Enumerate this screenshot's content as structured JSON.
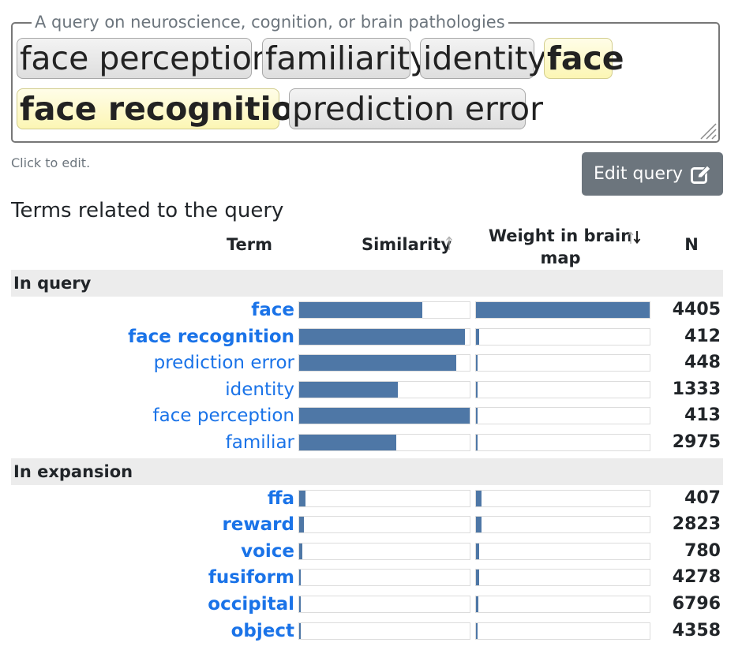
{
  "query": {
    "legend": "A query on neuroscience, cognition, or brain pathologies",
    "chips": [
      {
        "label": "face perception",
        "highlighted": false
      },
      {
        "label": "familiarity",
        "highlighted": false
      },
      {
        "label": "identity",
        "highlighted": false
      },
      {
        "label": "face",
        "highlighted": true
      },
      {
        "label": "face recognition",
        "highlighted": true
      },
      {
        "label": "prediction error",
        "highlighted": false
      }
    ],
    "hint": "Click to edit.",
    "edit_button": "Edit query",
    "edit_icon": "edit-square-pen-icon"
  },
  "table": {
    "title": "Terms related to the query",
    "headers": {
      "term": "Term",
      "similarity": "Similarity",
      "weight": "Weight in brain map",
      "n": "N"
    },
    "sort_icons": {
      "similarity": "sort-up-icon",
      "weight": "sort-updown-active-icon"
    },
    "groups": [
      {
        "label": "In query",
        "rows": [
          {
            "term": "face",
            "bold": true,
            "similarity": 0.72,
            "weight": 1.0,
            "n": "4405"
          },
          {
            "term": "face recognition",
            "bold": true,
            "similarity": 0.97,
            "weight": 0.02,
            "n": "412"
          },
          {
            "term": "prediction error",
            "bold": false,
            "similarity": 0.92,
            "weight": 0.01,
            "n": "448"
          },
          {
            "term": "identity",
            "bold": false,
            "similarity": 0.58,
            "weight": 0.005,
            "n": "1333"
          },
          {
            "term": "face perception",
            "bold": false,
            "similarity": 1.0,
            "weight": 0.005,
            "n": "413"
          },
          {
            "term": "familiar",
            "bold": false,
            "similarity": 0.57,
            "weight": 0.005,
            "n": "2975"
          }
        ]
      },
      {
        "label": "In expansion",
        "rows": [
          {
            "term": "ffa",
            "bold": true,
            "similarity": 0.035,
            "weight": 0.03,
            "n": "407"
          },
          {
            "term": "reward",
            "bold": true,
            "similarity": 0.03,
            "weight": 0.03,
            "n": "2823"
          },
          {
            "term": "voice",
            "bold": true,
            "similarity": 0.02,
            "weight": 0.02,
            "n": "780"
          },
          {
            "term": "fusiform",
            "bold": true,
            "similarity": 0.01,
            "weight": 0.02,
            "n": "4278"
          },
          {
            "term": "occipital",
            "bold": true,
            "similarity": 0.01,
            "weight": 0.015,
            "n": "6796"
          },
          {
            "term": "object",
            "bold": true,
            "similarity": 0.01,
            "weight": 0.005,
            "n": "4358"
          }
        ]
      }
    ]
  },
  "colors": {
    "bar": "#4e77a6",
    "link": "#1a73e8",
    "highlight": "#fcf6b4",
    "button": "#6c757d"
  }
}
